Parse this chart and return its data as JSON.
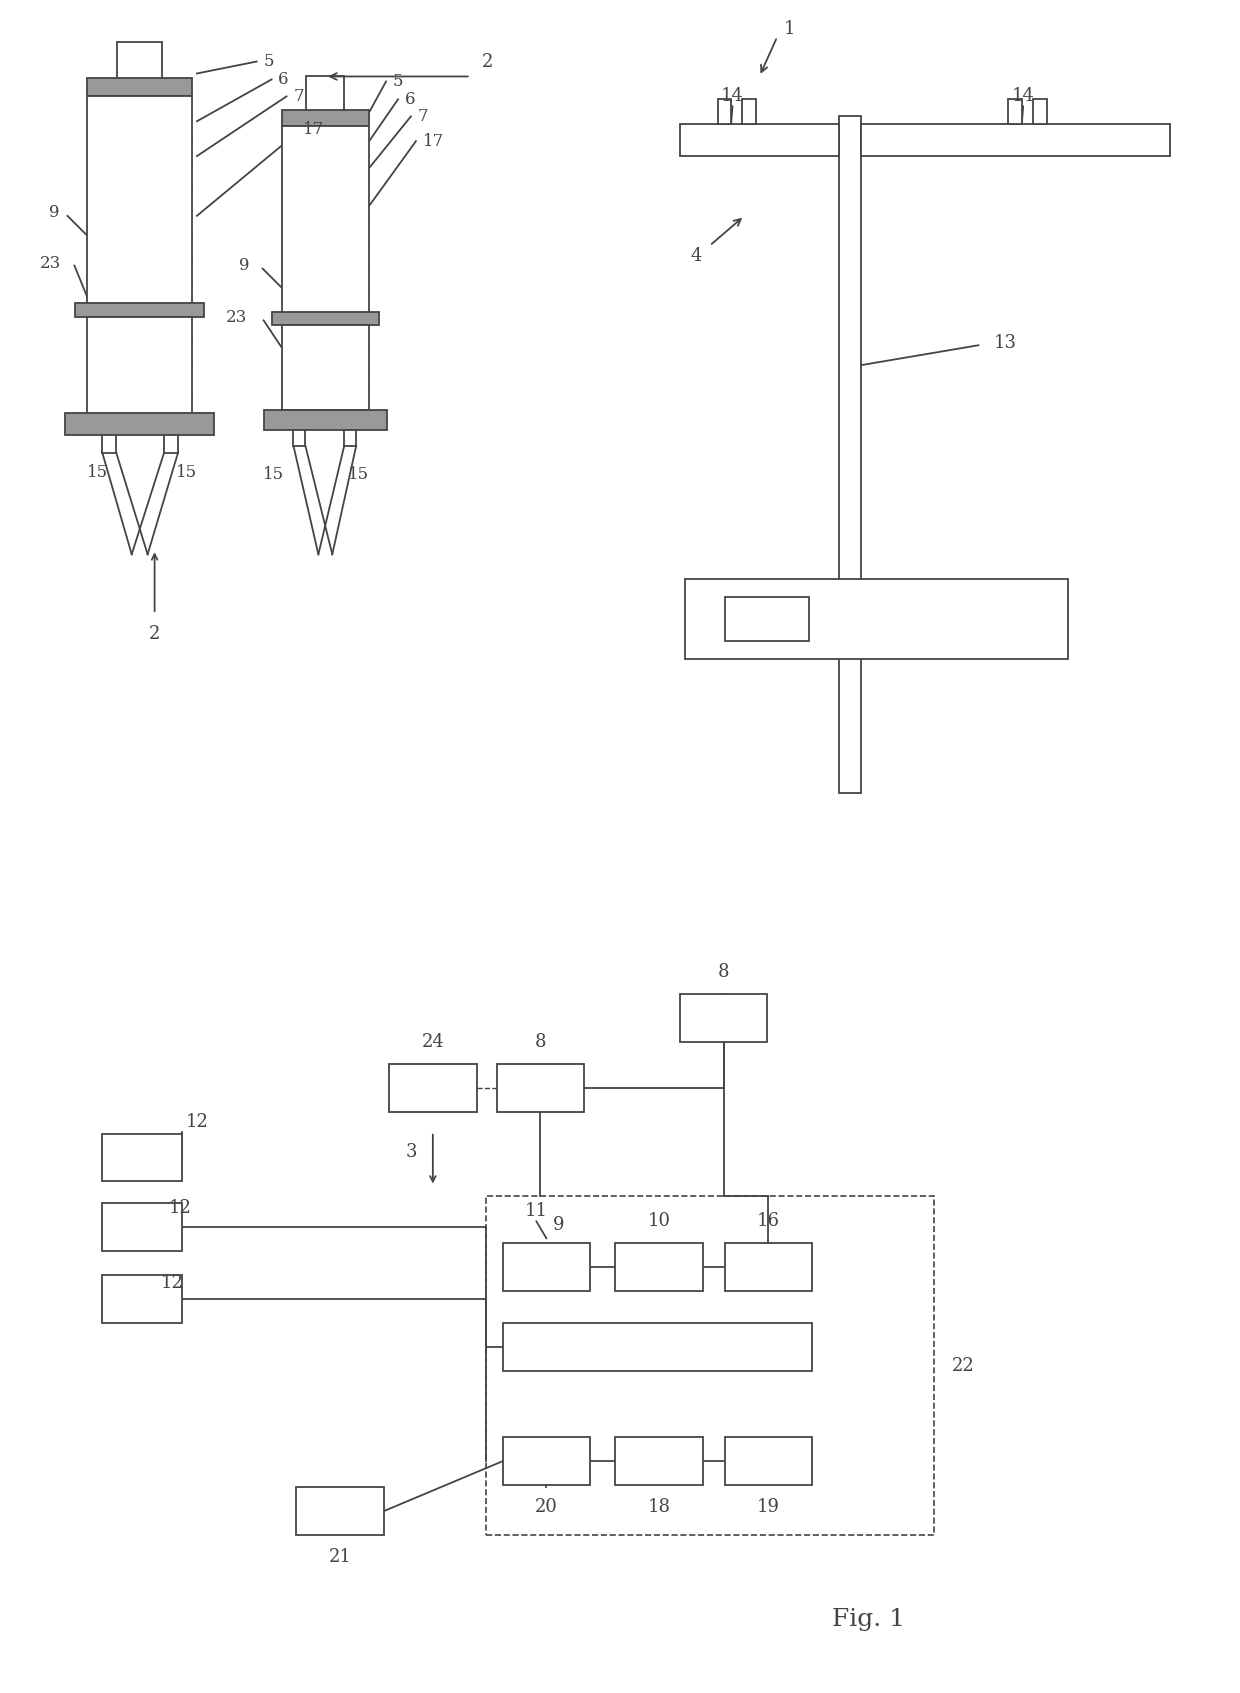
{
  "bg_color": "#ffffff",
  "lc": "#444444",
  "gray": "#999999",
  "fig_width": 12.4,
  "fig_height": 16.93,
  "dpi": 100
}
